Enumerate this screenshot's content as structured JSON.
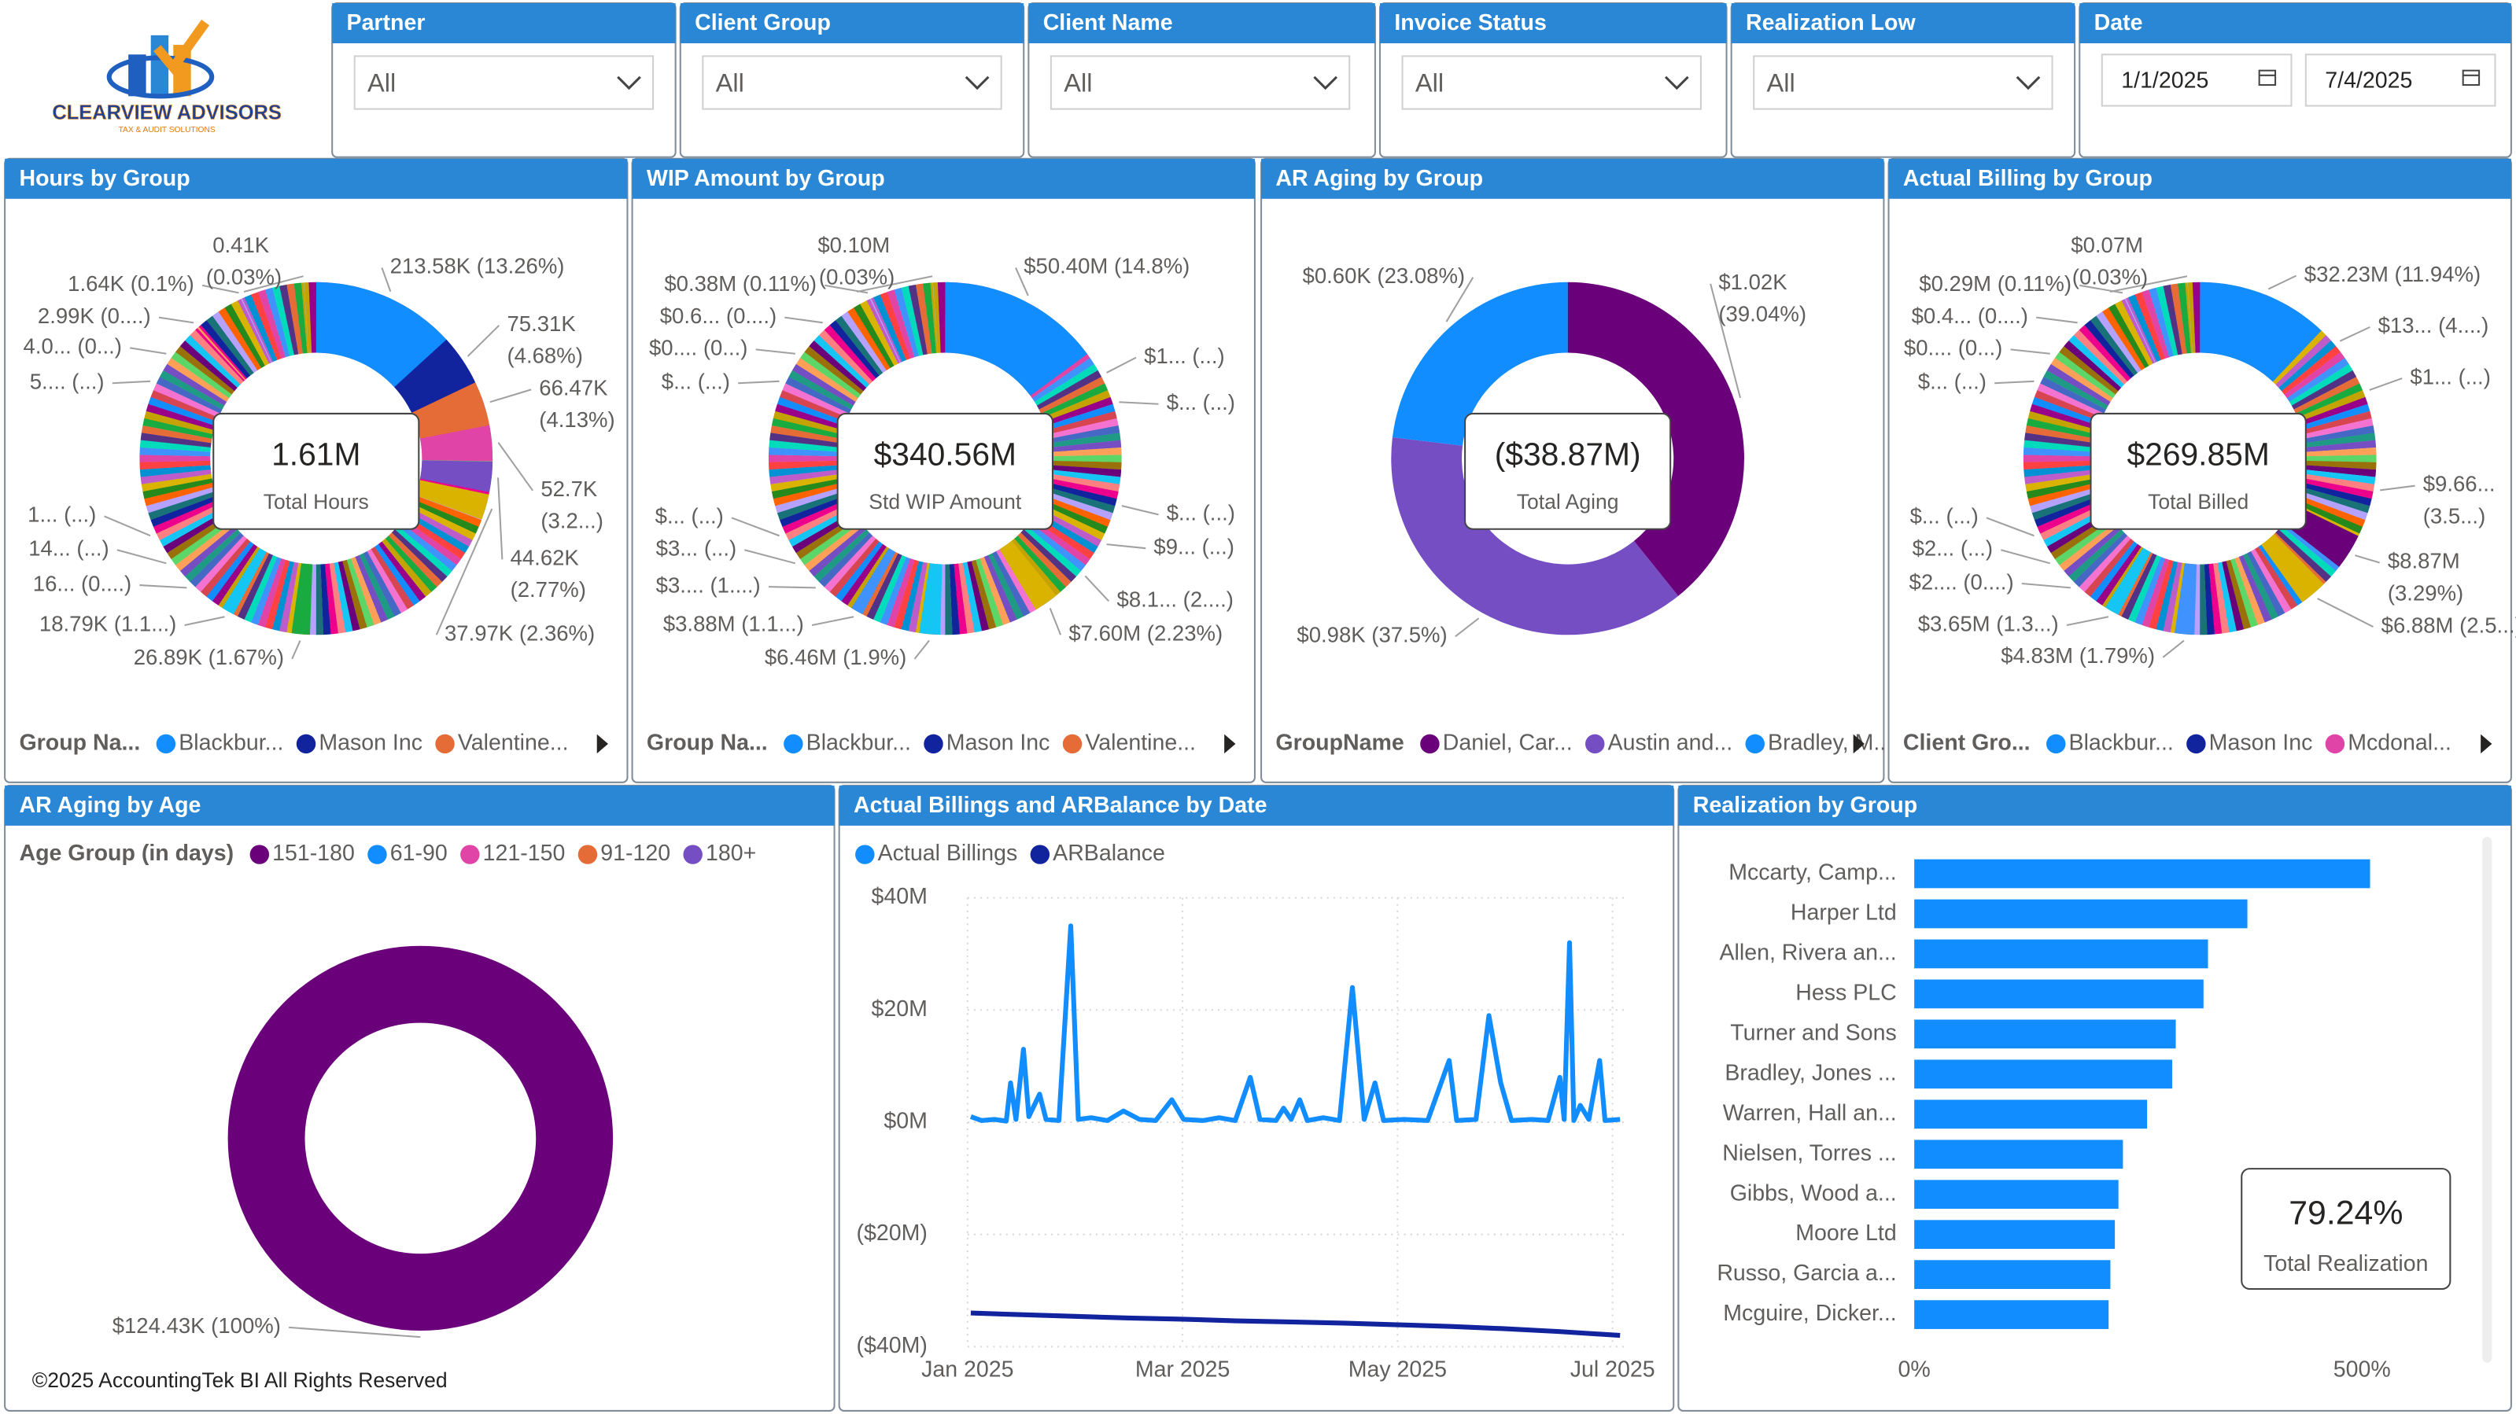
{
  "logo": {
    "name": "CLEARVIEW ADVISORS",
    "tagline": "TAX & AUDIT SOLUTIONS"
  },
  "filters": [
    {
      "label": "Partner",
      "value": "All"
    },
    {
      "label": "Client Group",
      "value": "All"
    },
    {
      "label": "Client Name",
      "value": "All"
    },
    {
      "label": "Invoice Status",
      "value": "All"
    },
    {
      "label": "Realization Low",
      "value": "All"
    }
  ],
  "date_filter": {
    "label": "Date",
    "start": "1/1/2025",
    "end": "7/4/2025"
  },
  "footer": "©2025 AccountingTek BI All Rights Reserved",
  "chart_data": [
    {
      "type": "donut",
      "title": "Hours by Group",
      "total": {
        "value": 1610000,
        "label": "1.61M"
      },
      "total_caption": "Total Hours",
      "values": [
        213580,
        75310,
        66470,
        52700,
        44620,
        37970,
        26890,
        18790,
        null,
        null,
        null,
        null,
        null,
        2990,
        1640,
        410
      ],
      "value_labels": [
        "213.58K (13.26%)",
        "75.31K (4.68%)",
        "66.47K (4.13%)",
        "52.7K (3.2...)",
        "44.62K (2.77%)",
        "37.97K (2.36%)",
        "26.89K (1.67%)",
        "18.79K (1.1...)",
        "16... (0....)",
        "14... (...)",
        "1... (...)",
        "5.... (...)",
        "4.0... (0...)",
        "2.99K (0....)",
        "1.64K (0.1%)",
        "0.41K (0.03%)"
      ],
      "colors": [
        "#118DFF",
        "#12239E",
        "#E66C37",
        "#E044A7",
        "#744EC2",
        "#D9B300",
        "#1AAB40",
        "#15C6F4",
        null,
        null,
        null,
        null,
        null,
        "#FFA058",
        "#B5A1FF",
        "#8AD4EB"
      ],
      "legend_title": "Group Na...",
      "legend": [
        {
          "name": "Blackbur...",
          "color": "#118DFF"
        },
        {
          "name": "Mason Inc",
          "color": "#12239E"
        },
        {
          "name": "Valentine...",
          "color": "#E66C37"
        }
      ]
    },
    {
      "type": "donut",
      "title": "WIP Amount by Group",
      "total": {
        "value": 340560000,
        "label": "$340.56M"
      },
      "total_caption": "Std WIP Amount",
      "values": [
        50400000,
        null,
        null,
        null,
        null,
        null,
        7600000,
        6460000,
        3880000,
        null,
        null,
        null,
        null,
        null,
        null,
        380000,
        100000
      ],
      "value_labels": [
        "$50.40M (14.8%)",
        "$1... (...)",
        "$... (...)",
        "$... (...)",
        "$9... (...)",
        "$8.1... (2....)",
        "$7.60M (2.23%)",
        "$6.46M (1.9%)",
        "$3.88M (1.1...)",
        "$3.... (1....)",
        "$3... (...)",
        "$... (...)",
        "$... (...)",
        "$0.... (0...)",
        "$0.6... (0....)",
        "$0.38M (0.11%)",
        "$0.10M (0.03%)"
      ],
      "colors": [
        "#118DFF",
        null,
        null,
        null,
        null,
        null,
        "#D9B300",
        "#15C6F4",
        "#4092FF",
        null,
        null,
        null,
        null,
        null,
        null,
        "#B5A1FF",
        "#8AD4EB"
      ],
      "legend_title": "Group Na...",
      "legend": [
        {
          "name": "Blackbur...",
          "color": "#118DFF"
        },
        {
          "name": "Mason Inc",
          "color": "#12239E"
        },
        {
          "name": "Valentine...",
          "color": "#E66C37"
        }
      ]
    },
    {
      "type": "donut",
      "title": "AR Aging by Group",
      "total": {
        "value": -38870000,
        "label": "($38.87M)"
      },
      "total_caption": "Total Aging",
      "values": [
        1020,
        980,
        600
      ],
      "value_labels": [
        "$1.02K (39.04%)",
        "$0.98K (37.5%)",
        "$0.60K (23.08%)"
      ],
      "colors": [
        "#6B007B",
        "#744EC2",
        "#118DFF"
      ],
      "legend_title": "GroupName",
      "legend": [
        {
          "name": "Daniel, Car...",
          "color": "#6B007B"
        },
        {
          "name": "Austin and...",
          "color": "#744EC2"
        },
        {
          "name": "Bradley, M...",
          "color": "#118DFF"
        }
      ]
    },
    {
      "type": "donut",
      "title": "Actual Billing by Group",
      "total": {
        "value": 269850000,
        "label": "$269.85M"
      },
      "total_caption": "Total Billed",
      "values": [
        32230000,
        null,
        null,
        null,
        8870000,
        6880000,
        4830000,
        3650000,
        null,
        null,
        null,
        null,
        null,
        null,
        290000,
        70000
      ],
      "value_labels": [
        "$32.23M (11.94%)",
        "$13... (4....)",
        "$1... (...)",
        "$9.66... (3.5...)",
        "$8.87M (3.29%)",
        "$6.88M (2.5...)",
        "$4.83M (1.79%)",
        "$3.65M (1.3...)",
        "$2.... (0....)",
        "$2... (...)",
        "$... (...)",
        "$... (...)",
        "$0.... (0...)",
        "$0.4... (0....)",
        "$0.29M (0.11%)",
        "$0.07M (0.03%)"
      ],
      "colors": [
        "#118DFF",
        null,
        null,
        null,
        "#6B007B",
        "#D9B300",
        "#4092FF",
        "#15C6F4",
        null,
        null,
        null,
        null,
        null,
        null,
        "#B5A1FF",
        "#8AD4EB"
      ],
      "legend_title": "Client Gro...",
      "legend": [
        {
          "name": "Blackbur...",
          "color": "#118DFF"
        },
        {
          "name": "Mason Inc",
          "color": "#12239E"
        },
        {
          "name": "Mcdonal...",
          "color": "#E044A7"
        }
      ]
    },
    {
      "type": "donut",
      "title": "AR Aging by Age",
      "values": [
        124430,
        null,
        null,
        null,
        null
      ],
      "value_labels": [
        "$124.43K (100%)",
        null,
        null,
        null,
        null
      ],
      "colors": [
        "#6B007B",
        null,
        null,
        null,
        null
      ],
      "legend_title": "Age Group (in days)",
      "legend": [
        {
          "name": "151-180",
          "color": "#6B007B"
        },
        {
          "name": "61-90",
          "color": "#118DFF"
        },
        {
          "name": "121-150",
          "color": "#E044A7"
        },
        {
          "name": "91-120",
          "color": "#E66C37"
        },
        {
          "name": "180+",
          "color": "#744EC2"
        }
      ]
    },
    {
      "type": "line",
      "title": "Actual Billings and ARBalance by Date",
      "xlim": [
        1,
        7.15
      ],
      "xticks": [
        {
          "value": 1,
          "label": "Jan 2025"
        },
        {
          "value": 3,
          "label": "Mar 2025"
        },
        {
          "value": 5,
          "label": "May 2025"
        },
        {
          "value": 7,
          "label": "Jul 2025"
        }
      ],
      "ylim": [
        -40000000,
        40000000
      ],
      "yticks": [
        {
          "value": 40000000,
          "label": "$40M"
        },
        {
          "value": 20000000,
          "label": "$20M"
        },
        {
          "value": 0,
          "label": "$0M"
        },
        {
          "value": -20000000,
          "label": "($20M)"
        },
        {
          "value": -40000000,
          "label": "($40M)"
        }
      ],
      "grid": true,
      "series": [
        {
          "name": "Actual Billings",
          "color": "#118DFF",
          "x": [
            1.03,
            1.13,
            1.25,
            1.36,
            1.4,
            1.45,
            1.52,
            1.57,
            1.67,
            1.73,
            1.85,
            1.96,
            2.03,
            2.15,
            2.3,
            2.45,
            2.6,
            2.75,
            2.9,
            3.01,
            3.19,
            3.34,
            3.49,
            3.63,
            3.72,
            3.87,
            3.94,
            4.01,
            4.09,
            4.16,
            4.31,
            4.46,
            4.58,
            4.69,
            4.79,
            4.87,
            5.06,
            5.28,
            5.48,
            5.55,
            5.73,
            5.85,
            5.96,
            6.06,
            6.25,
            6.4,
            6.51,
            6.55,
            6.6,
            6.64,
            6.7,
            6.78,
            6.88,
            6.93,
            7.07
          ],
          "values": [
            1000000,
            300000,
            500000,
            200000,
            7000000,
            500000,
            13000000,
            1000000,
            5000000,
            500000,
            300000,
            35000000,
            500000,
            800000,
            300000,
            2000000,
            500000,
            300000,
            4000000,
            500000,
            300000,
            800000,
            300000,
            8000000,
            500000,
            300000,
            2500000,
            500000,
            4000000,
            300000,
            800000,
            300000,
            24000000,
            500000,
            7000000,
            300000,
            500000,
            300000,
            11000000,
            300000,
            500000,
            19000000,
            7000000,
            300000,
            500000,
            300000,
            8000000,
            500000,
            32000000,
            300000,
            3000000,
            500000,
            11000000,
            300000,
            500000
          ]
        },
        {
          "name": "ARBalance",
          "color": "#12239E",
          "x": [
            1.03,
            1.5,
            2,
            2.5,
            3,
            3.5,
            4,
            4.5,
            5,
            5.5,
            6,
            6.5,
            7.07
          ],
          "values": [
            -34000000,
            -34300000,
            -34600000,
            -34900000,
            -35100000,
            -35400000,
            -35600000,
            -35800000,
            -36100000,
            -36400000,
            -36800000,
            -37300000,
            -38000000
          ]
        }
      ]
    },
    {
      "type": "bar",
      "orientation": "horizontal",
      "title": "Realization by Group",
      "categories": [
        "Mccarty, Camp...",
        "Harper Ltd",
        "Allen, Rivera an...",
        "Hess PLC",
        "Turner and Sons",
        "Bradley, Jones ...",
        "Warren, Hall an...",
        "Nielsen, Torres ...",
        "Gibbs, Wood a...",
        "Moore Ltd",
        "Russo, Garcia a...",
        "Mcguire, Dicker..."
      ],
      "values": [
        509,
        372,
        328,
        323,
        292,
        288,
        260,
        233,
        228,
        224,
        219,
        217
      ],
      "color": "#118DFF",
      "xlim": [
        0,
        620
      ],
      "xticks": [
        {
          "value": 0,
          "label": "0%"
        },
        {
          "value": 500,
          "label": "500%"
        }
      ],
      "card_value": "79.24%",
      "card_caption": "Total Realization"
    }
  ]
}
